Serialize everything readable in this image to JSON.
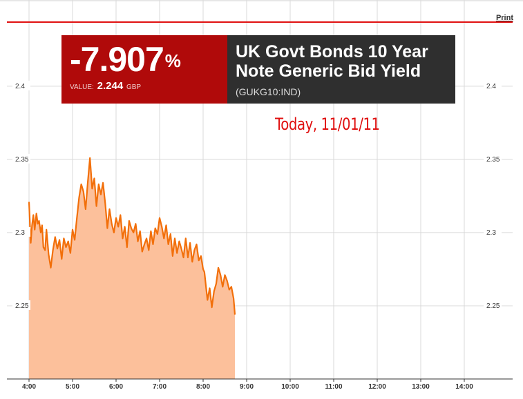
{
  "header": {
    "print_label": "Print"
  },
  "badge": {
    "change": "-7.907",
    "percent_sign": "%",
    "value_label": "VALUE:",
    "value": "2.244",
    "currency": "GBP",
    "title_line1": "UK Govt Bonds 10 Year",
    "title_line2": "Note Generic Bid Yield",
    "ticker": "(GUKG10:IND)"
  },
  "annotation": "Today, 11/01/11",
  "colors": {
    "line": "#f26f0a",
    "fill": "#fcc09b",
    "accent_red": "#b00a0a",
    "rule_red": "#e01010",
    "dark": "#2f2f2f",
    "grid": "#d9d9d9"
  },
  "chart_data": {
    "type": "area",
    "title": "",
    "xlabel": "",
    "ylabel": "",
    "x_ticks": [
      "4:00",
      "5:00",
      "6:00",
      "7:00",
      "8:00",
      "9:00",
      "10:00",
      "11:00",
      "12:00",
      "13:00",
      "14:00"
    ],
    "y_ticks": [
      "2.4",
      "2.35",
      "2.3",
      "2.25"
    ],
    "y_ticks_right": [
      "2.4",
      "2.35",
      "2.3",
      "2.25"
    ],
    "ylim": [
      2.2,
      2.44
    ],
    "xlim": [
      4.0,
      14.0
    ],
    "grid": true,
    "series": [
      {
        "x": [
          4.0,
          4.04,
          4.07,
          4.1,
          4.13,
          4.17,
          4.2,
          4.23,
          4.27,
          4.3,
          4.33,
          4.37,
          4.4,
          4.45,
          4.5,
          4.55,
          4.6,
          4.65,
          4.7,
          4.75,
          4.8,
          4.85,
          4.9,
          4.95,
          5.0,
          5.05,
          5.1,
          5.15,
          5.2,
          5.25,
          5.3,
          5.35,
          5.4,
          5.45,
          5.5,
          5.55,
          5.6,
          5.65,
          5.7,
          5.75,
          5.8,
          5.85,
          5.9,
          5.95,
          6.0,
          6.05,
          6.1,
          6.15,
          6.2,
          6.25,
          6.3,
          6.35,
          6.4,
          6.45,
          6.5,
          6.55,
          6.6,
          6.65,
          6.7,
          6.75,
          6.8,
          6.85,
          6.9,
          6.95,
          7.0,
          7.05,
          7.1,
          7.15,
          7.2,
          7.25,
          7.3,
          7.35,
          7.4,
          7.45,
          7.5,
          7.55,
          7.6,
          7.65,
          7.7,
          7.75,
          7.8,
          7.85,
          7.9,
          7.95,
          8.0,
          8.03,
          8.07,
          8.1,
          8.15,
          8.2,
          8.25,
          8.3,
          8.35,
          8.4,
          8.45,
          8.5,
          8.55,
          8.6,
          8.65,
          8.7,
          8.73
        ],
        "values": [
          2.321,
          2.293,
          2.305,
          2.312,
          2.302,
          2.313,
          2.306,
          2.308,
          2.3,
          2.305,
          2.29,
          2.288,
          2.302,
          2.285,
          2.276,
          2.288,
          2.297,
          2.289,
          2.295,
          2.282,
          2.296,
          2.29,
          2.294,
          2.286,
          2.302,
          2.295,
          2.31,
          2.324,
          2.333,
          2.328,
          2.316,
          2.334,
          2.351,
          2.33,
          2.337,
          2.318,
          2.333,
          2.326,
          2.334,
          2.32,
          2.303,
          2.316,
          2.306,
          2.3,
          2.31,
          2.304,
          2.312,
          2.296,
          2.304,
          2.29,
          2.308,
          2.303,
          2.3,
          2.306,
          2.294,
          2.301,
          2.287,
          2.292,
          2.296,
          2.288,
          2.301,
          2.292,
          2.303,
          2.299,
          2.31,
          2.304,
          2.296,
          2.305,
          2.292,
          2.299,
          2.284,
          2.296,
          2.286,
          2.294,
          2.289,
          2.283,
          2.296,
          2.283,
          2.293,
          2.28,
          2.288,
          2.292,
          2.281,
          2.284,
          2.275,
          2.273,
          2.262,
          2.254,
          2.262,
          2.249,
          2.26,
          2.265,
          2.276,
          2.271,
          2.263,
          2.271,
          2.267,
          2.261,
          2.263,
          2.255,
          2.244
        ]
      }
    ]
  }
}
